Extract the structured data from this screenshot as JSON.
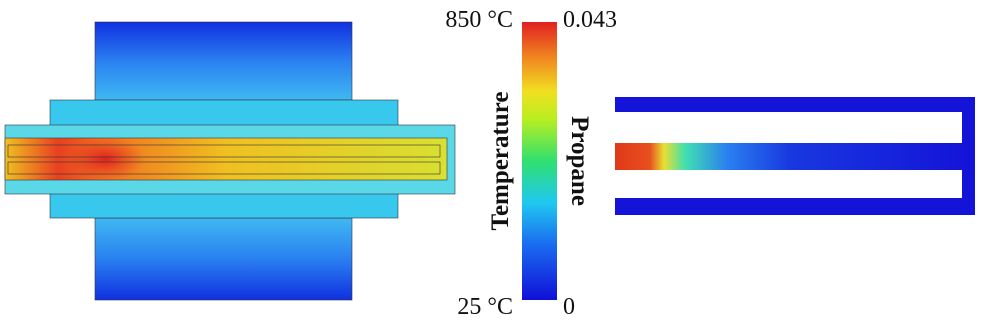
{
  "colorbar": {
    "temperature": {
      "label": "Temperature",
      "max": "850 °C",
      "min": "25 °C"
    },
    "propane": {
      "label": "Propane",
      "max": "0.043",
      "min": "0"
    }
  }
}
